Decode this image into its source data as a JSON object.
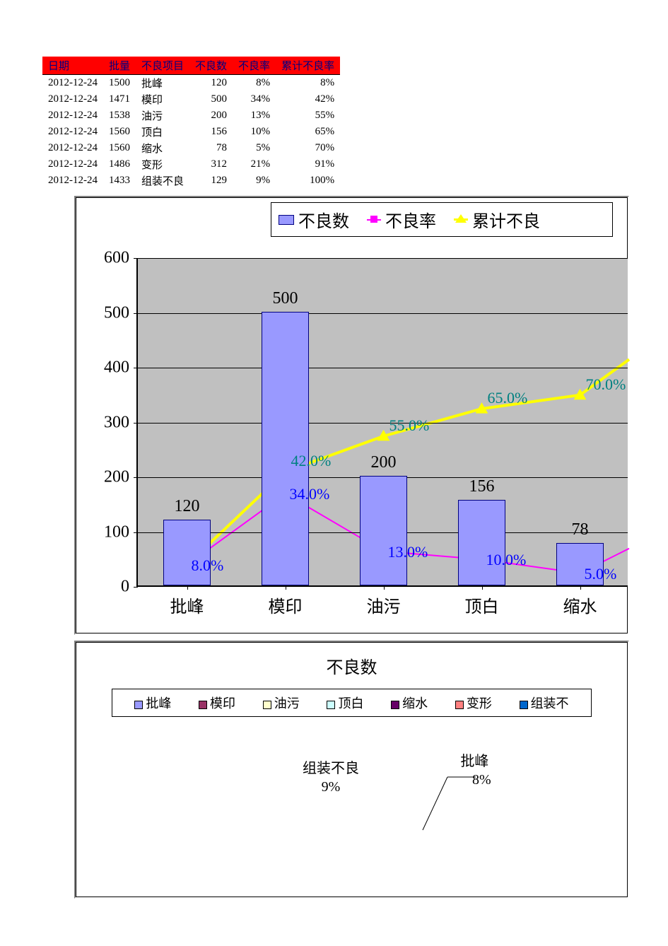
{
  "table": {
    "headers": [
      "日期",
      "批量",
      "不良项目",
      "不良数",
      "不良率",
      "累计不良率"
    ],
    "rows": [
      [
        "2012-12-24",
        "1500",
        "批峰",
        "120",
        "8%",
        "8%"
      ],
      [
        "2012-12-24",
        "1471",
        "模印",
        "500",
        "34%",
        "42%"
      ],
      [
        "2012-12-24",
        "1538",
        "油污",
        "200",
        "13%",
        "55%"
      ],
      [
        "2012-12-24",
        "1560",
        "顶白",
        "156",
        "10%",
        "65%"
      ],
      [
        "2012-12-24",
        "1560",
        "缩水",
        "78",
        "5%",
        "70%"
      ],
      [
        "2012-12-24",
        "1486",
        "变形",
        "312",
        "21%",
        "91%"
      ],
      [
        "2012-12-24",
        "1433",
        "组装不良",
        "129",
        "9%",
        "100%"
      ]
    ],
    "header_bg": "#ff0000",
    "header_fg": "#000080"
  },
  "chart1": {
    "type": "bar_line_combo",
    "legend": {
      "bar": "不良数",
      "rate": "不良率",
      "cum": "累计不良"
    },
    "categories": [
      "批峰",
      "模印",
      "油污",
      "顶白",
      "缩水"
    ],
    "bar_values": [
      120,
      500,
      200,
      156,
      78
    ],
    "rate_values": [
      8.0,
      34.0,
      13.0,
      10.0,
      5.0
    ],
    "rate_labels": [
      "8.0%",
      "34.0%",
      "13.0%",
      "10.0%",
      "5.0%"
    ],
    "cum_values": [
      8.0,
      42.0,
      55.0,
      65.0,
      70.0
    ],
    "cum_labels": [
      "8.0%",
      "42.0%",
      "55.0%",
      "65.0%",
      "70.0%"
    ],
    "ylim": [
      0,
      600
    ],
    "ytick_step": 100,
    "bar_color": "#9999ff",
    "bar_border": "#000080",
    "rate_color": "#ff00ff",
    "cum_color": "#ffff00",
    "cum_line_width": 4,
    "rate_line_width": 2,
    "plot_bg": "#c0c0c0",
    "grid_color": "#000000",
    "axis_fontsize": 24,
    "label_fontsize": 24,
    "rate_label_color": "#0000ff",
    "cum_label_color": "#008080"
  },
  "chart2": {
    "type": "pie",
    "title": "不良数",
    "legend_items": [
      {
        "label": "批峰",
        "color": "#9999ff"
      },
      {
        "label": "模印",
        "color": "#993366"
      },
      {
        "label": "油污",
        "color": "#ffffcc"
      },
      {
        "label": "顶白",
        "color": "#ccffff"
      },
      {
        "label": "缩水",
        "color": "#660066"
      },
      {
        "label": "变形",
        "color": "#ff8080"
      },
      {
        "label": "组装不",
        "color": "#0066cc"
      }
    ],
    "visible_slice_labels": [
      {
        "name": "组装不良",
        "pct": "9%"
      },
      {
        "name": "批峰",
        "pct": "8%"
      }
    ],
    "title_fontsize": 24,
    "legend_fontsize": 18
  }
}
